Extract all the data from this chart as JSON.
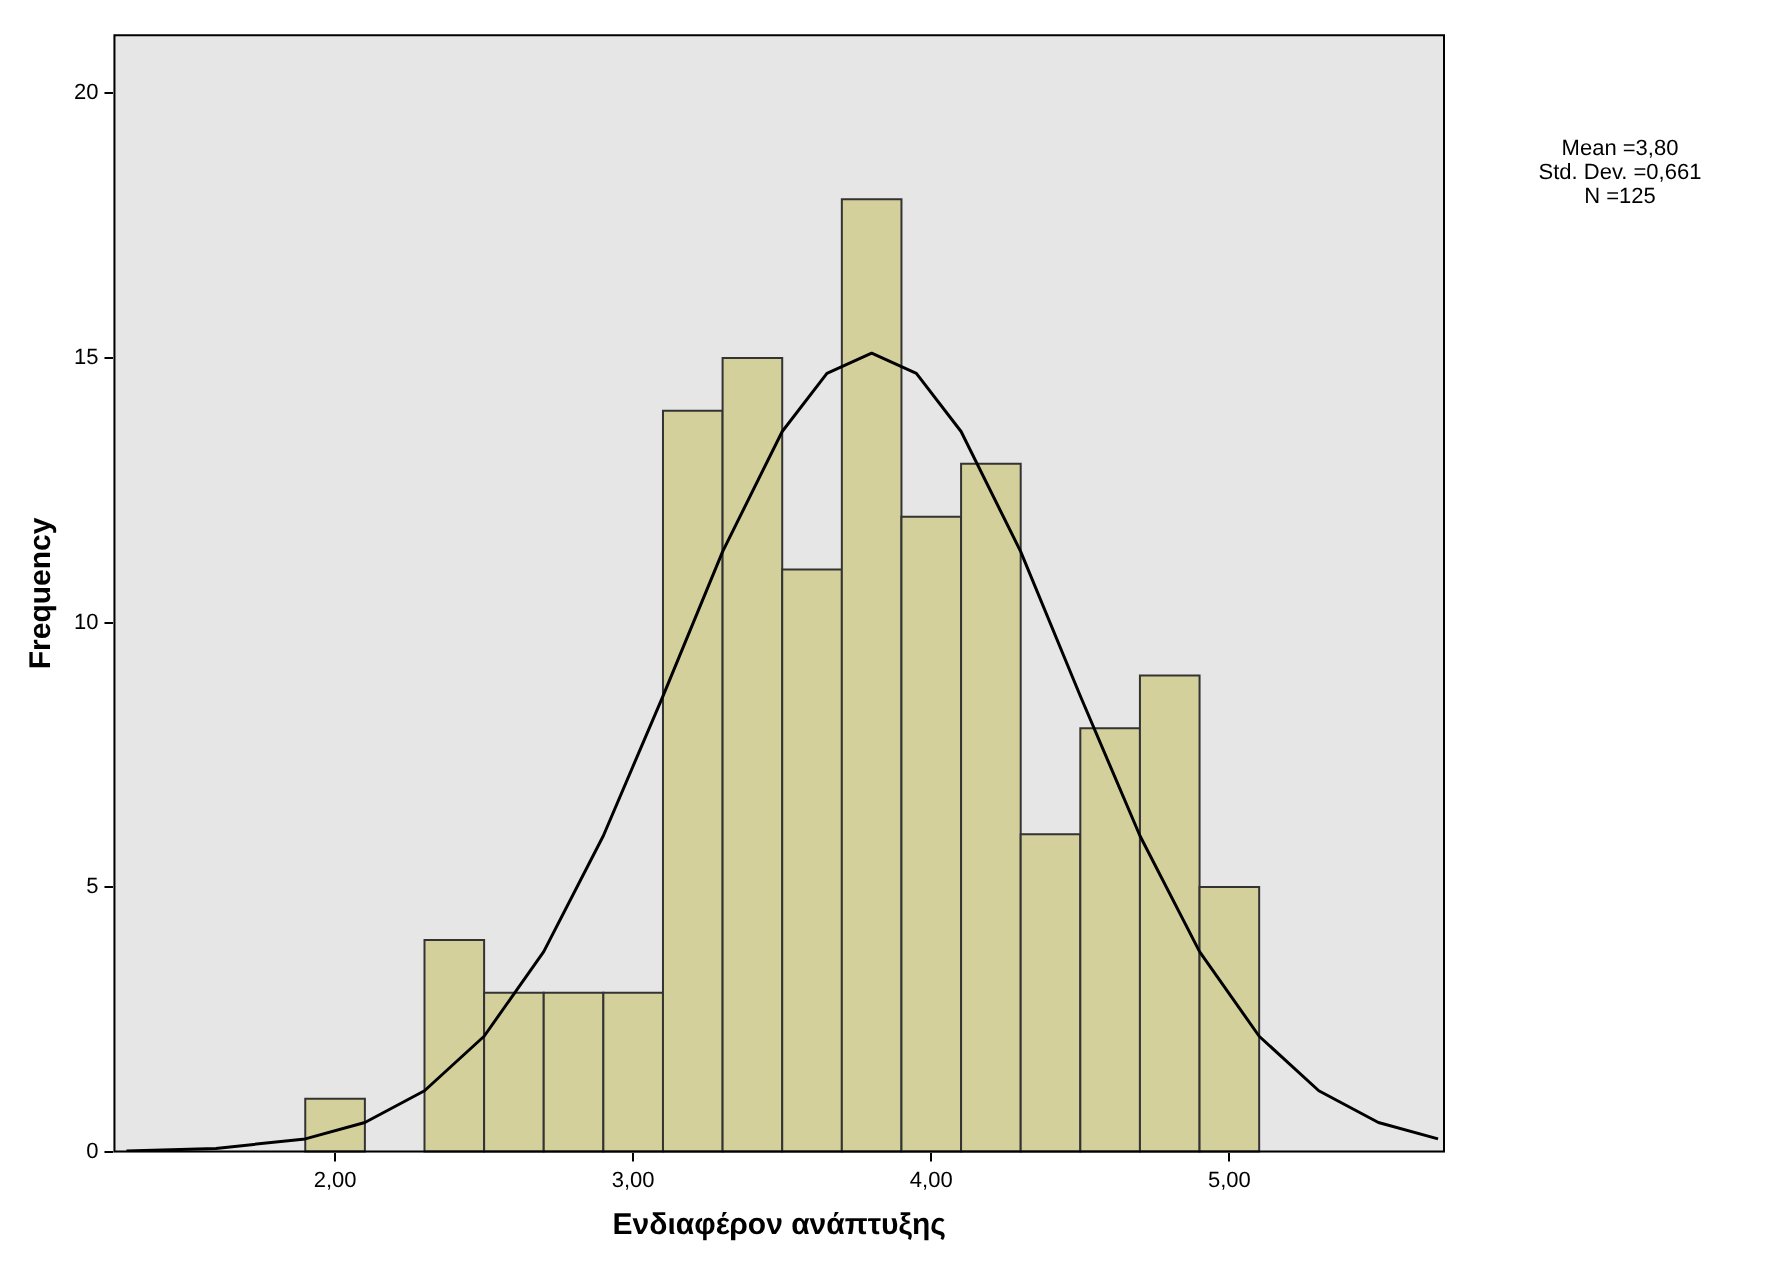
{
  "chart_data": {
    "type": "histogram",
    "xlabel": "Ενδιαφέρον ανάπτυξης",
    "ylabel": "Frequency",
    "bins": [
      1.9,
      2.1,
      2.3,
      2.5,
      2.7,
      2.9,
      3.1,
      3.3,
      3.5,
      3.7,
      3.9,
      4.1,
      4.3,
      4.5,
      4.7,
      4.9,
      5.1
    ],
    "values": [
      1,
      0,
      4,
      3,
      3,
      3,
      14,
      15,
      11,
      18,
      12,
      13,
      6,
      8,
      9,
      5
    ],
    "color": "#d4d09c",
    "series": [
      {
        "type": "line",
        "color": "#000000",
        "x": [
          1.3,
          1.6,
          1.9,
          2.1,
          2.3,
          2.5,
          2.7,
          2.9,
          3.1,
          3.3,
          3.5,
          3.65,
          3.8,
          3.95,
          4.1,
          4.3,
          4.5,
          4.7,
          4.9,
          5.1,
          5.3,
          5.5,
          5.7
        ],
        "values": [
          0.01,
          0.06,
          0.24,
          0.55,
          1.15,
          2.18,
          3.78,
          5.97,
          8.61,
          11.34,
          13.61,
          14.71,
          15.09,
          14.71,
          13.61,
          11.34,
          8.61,
          5.97,
          3.78,
          2.18,
          1.15,
          0.55,
          0.24
        ]
      }
    ],
    "xlim": [
      1.26,
      5.72
    ],
    "ylim": [
      0,
      21.1
    ],
    "xticks": [
      {
        "value": 2,
        "label": "2,00"
      },
      {
        "value": 3,
        "label": "3,00"
      },
      {
        "value": 4,
        "label": "4,00"
      },
      {
        "value": 5,
        "label": "5,00"
      }
    ],
    "yticks": [
      0,
      5,
      10,
      15,
      20
    ],
    "grid": false,
    "legend": false,
    "annotations": [
      "Mean =3,80",
      "Std. Dev. =0,661",
      "N =125"
    ]
  }
}
